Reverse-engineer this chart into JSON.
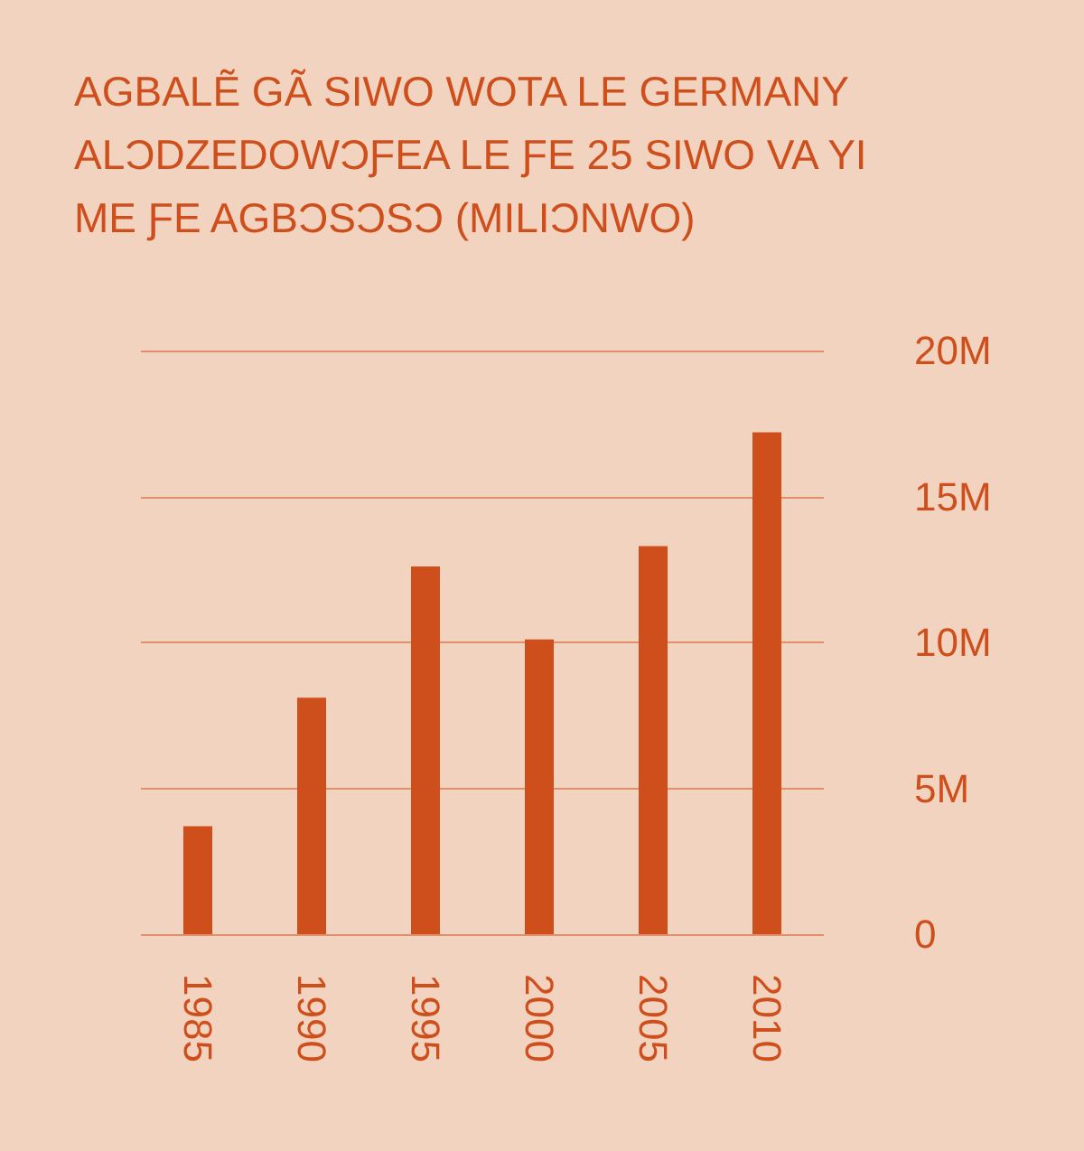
{
  "chart_data": {
    "type": "bar",
    "title": "AGBALẼ GÃ SIWO WOTA LE GERMANY ALƆDZEDOWƆƑEA LE ƑE 25 SIWO VA YI ME ƑE AGBƆSƆSƆ (MILIƆNWO)",
    "categories": [
      "1985",
      "1990",
      "1995",
      "2000",
      "2005",
      "2010"
    ],
    "values": [
      3.7,
      8.1,
      12.6,
      10.1,
      13.3,
      17.2
    ],
    "color": "#cf4f1c",
    "ylim": [
      0,
      20
    ],
    "yticks": [
      0,
      {
        "value": 5,
        "label": "5M"
      },
      {
        "value": 10,
        "label": "10M"
      },
      {
        "value": 15,
        "label": "15M"
      },
      {
        "value": 20,
        "label": "20M"
      }
    ],
    "grid": "y"
  }
}
